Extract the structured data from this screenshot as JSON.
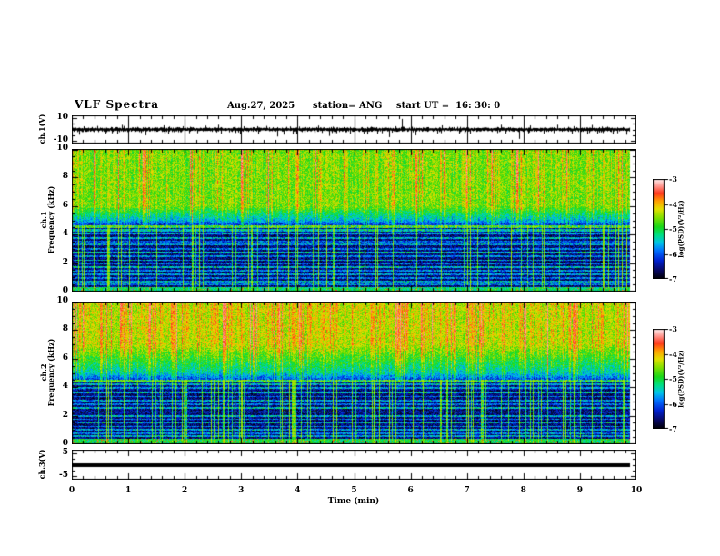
{
  "header": {
    "title": "VLF Spectra",
    "date": "Aug.27, 2025",
    "station": "station= ANG",
    "start_ut": "start UT =  16: 30: 0"
  },
  "x_axis": {
    "label": "Time (min)",
    "min": 0,
    "max": 10,
    "major_step": 1,
    "minor_step": 0.2,
    "tick_labels": [
      "0",
      "1",
      "2",
      "3",
      "4",
      "5",
      "6",
      "7",
      "8",
      "9",
      "10"
    ]
  },
  "chart_data": [
    {
      "type": "line",
      "id": "ch1_waveform",
      "ylabel": "ch.1(V)",
      "ylim": [
        -12,
        12
      ],
      "xlim": [
        0,
        10
      ],
      "ytick_labels": [
        {
          "value": 10,
          "label": "10"
        },
        {
          "value": -10,
          "label": "-10"
        }
      ],
      "minor_yticks": [
        5,
        0,
        -5
      ],
      "signal": {
        "kind": "noise",
        "mean_v": 0,
        "noise_amp_v": 1.6,
        "minute_marker_times": [
          1,
          2,
          3,
          4,
          5,
          6,
          7,
          8,
          9
        ],
        "spikes": [
          {
            "t": 0.13,
            "v": -4.5
          },
          {
            "t": 0.45,
            "v": 3.0
          },
          {
            "t": 1.3,
            "v": -5.0
          },
          {
            "t": 1.62,
            "v": 3.5
          },
          {
            "t": 2.6,
            "v": 4.0
          },
          {
            "t": 3.3,
            "v": -4.0
          },
          {
            "t": 3.64,
            "v": -6.0
          },
          {
            "t": 4.55,
            "v": -5.5
          },
          {
            "t": 5.0,
            "v": -3.5
          },
          {
            "t": 5.62,
            "v": -6.5
          },
          {
            "t": 5.85,
            "v": 9.0
          },
          {
            "t": 6.08,
            "v": -5.0
          },
          {
            "t": 6.55,
            "v": 3.5
          },
          {
            "t": 7.05,
            "v": -3.5
          },
          {
            "t": 7.6,
            "v": 4.0
          },
          {
            "t": 7.92,
            "v": -8.0
          },
          {
            "t": 8.35,
            "v": -3.5
          },
          {
            "t": 8.6,
            "v": 4.0
          },
          {
            "t": 9.3,
            "v": -3.5
          },
          {
            "t": 9.82,
            "v": -4.5
          }
        ]
      }
    },
    {
      "type": "heatmap",
      "id": "ch1_spectrogram",
      "ylabel_lines": [
        "ch.1",
        "Frequency (kHz)"
      ],
      "ylim": [
        0,
        10
      ],
      "xlim": [
        0,
        10
      ],
      "ytick_labels": [
        {
          "value": 10,
          "label": "10"
        },
        {
          "value": 8,
          "label": "8"
        },
        {
          "value": 6,
          "label": "6"
        },
        {
          "value": 4,
          "label": "4"
        },
        {
          "value": 2,
          "label": "2"
        },
        {
          "value": 0,
          "label": "0"
        }
      ],
      "value_range": [
        -7,
        -3
      ],
      "seed": 20250827,
      "bands": [
        {
          "f_min": 6.0,
          "f_max": 10.01,
          "level": -4.78
        },
        {
          "f_min": 5.0,
          "f_max": 6.0,
          "level_top": -4.78,
          "level_bottom": -5.75
        },
        {
          "f_min": 4.65,
          "f_max": 5.0,
          "level_top": -5.75,
          "level_bottom": -6.4
        },
        {
          "f_min": 0.35,
          "f_max": 4.65,
          "level": -6.6
        },
        {
          "f_min": 0.0,
          "f_max": 0.35,
          "level": -5.25
        }
      ],
      "hlines": [
        {
          "f": 4.55,
          "s": 1.9,
          "w": 0.09
        },
        {
          "f": 4.3,
          "s": 1.2,
          "w": 0.07
        },
        {
          "f": 4.05,
          "s": 0.9,
          "w": 0.06
        },
        {
          "f": 3.75,
          "s": 1.1,
          "w": 0.06
        },
        {
          "f": 3.5,
          "s": 0.7,
          "w": 0.05
        },
        {
          "f": 3.3,
          "s": 1.0,
          "w": 0.06
        },
        {
          "f": 3.0,
          "s": 0.8,
          "w": 0.05
        },
        {
          "f": 2.75,
          "s": 1.3,
          "w": 0.07
        },
        {
          "f": 2.5,
          "s": 0.9,
          "w": 0.05
        },
        {
          "f": 2.2,
          "s": 1.1,
          "w": 0.06
        },
        {
          "f": 1.95,
          "s": 0.8,
          "w": 0.05
        },
        {
          "f": 1.7,
          "s": 1.2,
          "w": 0.06
        },
        {
          "f": 1.45,
          "s": 0.9,
          "w": 0.05
        },
        {
          "f": 1.2,
          "s": 1.0,
          "w": 0.06
        },
        {
          "f": 0.95,
          "s": 0.8,
          "w": 0.05
        },
        {
          "f": 0.7,
          "s": 1.1,
          "w": 0.06
        },
        {
          "f": 0.5,
          "s": 0.9,
          "w": 0.05
        }
      ],
      "streaks": {
        "density": 0.42,
        "deep_density": 0.1,
        "red_column_fraction": 0.2,
        "red_boost": 0.9
      }
    },
    {
      "type": "heatmap",
      "id": "ch2_spectrogram",
      "ylabel_lines": [
        "ch.2",
        "Frequency (kHz)"
      ],
      "ylim": [
        0,
        10
      ],
      "xlim": [
        0,
        10
      ],
      "ytick_labels": [
        {
          "value": 10,
          "label": "10"
        },
        {
          "value": 8,
          "label": "8"
        },
        {
          "value": 6,
          "label": "6"
        },
        {
          "value": 4,
          "label": "4"
        },
        {
          "value": 2,
          "label": "2"
        },
        {
          "value": 0,
          "label": "0"
        }
      ],
      "value_range": [
        -7,
        -3
      ],
      "seed": 16303,
      "bands": [
        {
          "f_min": 7.0,
          "f_max": 10.01,
          "level": -4.55
        },
        {
          "f_min": 5.0,
          "f_max": 7.0,
          "level_top": -4.55,
          "level_bottom": -5.6
        },
        {
          "f_min": 4.5,
          "f_max": 5.0,
          "level_top": -5.6,
          "level_bottom": -6.35
        },
        {
          "f_min": 0.4,
          "f_max": 4.5,
          "level": -6.6
        },
        {
          "f_min": 0.0,
          "f_max": 0.4,
          "level": -5.15
        }
      ],
      "hlines": [
        {
          "f": 4.45,
          "s": 1.8,
          "w": 0.09
        },
        {
          "f": 4.2,
          "s": 1.1,
          "w": 0.07
        },
        {
          "f": 3.95,
          "s": 0.9,
          "w": 0.06
        },
        {
          "f": 3.65,
          "s": 1.2,
          "w": 0.06
        },
        {
          "f": 3.35,
          "s": 0.8,
          "w": 0.05
        },
        {
          "f": 3.05,
          "s": 1.0,
          "w": 0.06
        },
        {
          "f": 2.8,
          "s": 0.8,
          "w": 0.05
        },
        {
          "f": 2.55,
          "s": 1.2,
          "w": 0.07
        },
        {
          "f": 2.25,
          "s": 0.9,
          "w": 0.05
        },
        {
          "f": 2.0,
          "s": 1.1,
          "w": 0.06
        },
        {
          "f": 1.75,
          "s": 0.8,
          "w": 0.05
        },
        {
          "f": 1.5,
          "s": 1.2,
          "w": 0.06
        },
        {
          "f": 1.25,
          "s": 0.9,
          "w": 0.05
        },
        {
          "f": 1.0,
          "s": 1.0,
          "w": 0.06
        },
        {
          "f": 0.75,
          "s": 0.9,
          "w": 0.05
        },
        {
          "f": 0.55,
          "s": 1.1,
          "w": 0.06
        }
      ],
      "streaks": {
        "density": 0.48,
        "deep_density": 0.14,
        "red_column_fraction": 0.33,
        "red_boost": 1.25
      }
    },
    {
      "type": "line",
      "id": "ch3_flat",
      "ylabel": "ch.3(V)",
      "ylim": [
        -6.5,
        6.5
      ],
      "xlim": [
        0,
        10
      ],
      "ytick_labels": [
        {
          "value": 5,
          "label": "5"
        },
        {
          "value": -5,
          "label": "-5"
        }
      ],
      "minor_yticks": [
        2.5,
        0,
        -2.5
      ],
      "signal": {
        "kind": "constant",
        "value": 0,
        "thickness_px": 4
      }
    }
  ],
  "colorbar": {
    "label": "log(PSD)(V²/Hz)",
    "ticks": [
      {
        "value": -3,
        "label": "-3"
      },
      {
        "value": -4,
        "label": "-4"
      },
      {
        "value": -5,
        "label": "-5"
      },
      {
        "value": -6,
        "label": "-6"
      },
      {
        "value": -7,
        "label": "-7"
      }
    ],
    "colormap": [
      [
        0.0,
        0,
        0,
        8
      ],
      [
        0.08,
        8,
        8,
        96
      ],
      [
        0.18,
        0,
        32,
        208
      ],
      [
        0.28,
        0,
        112,
        255
      ],
      [
        0.36,
        0,
        196,
        232
      ],
      [
        0.44,
        0,
        224,
        128
      ],
      [
        0.52,
        24,
        216,
        24
      ],
      [
        0.62,
        136,
        224,
        0
      ],
      [
        0.7,
        228,
        224,
        0
      ],
      [
        0.78,
        255,
        160,
        0
      ],
      [
        0.86,
        255,
        56,
        28
      ],
      [
        0.93,
        255,
        148,
        140
      ],
      [
        1.0,
        255,
        236,
        236
      ]
    ]
  }
}
